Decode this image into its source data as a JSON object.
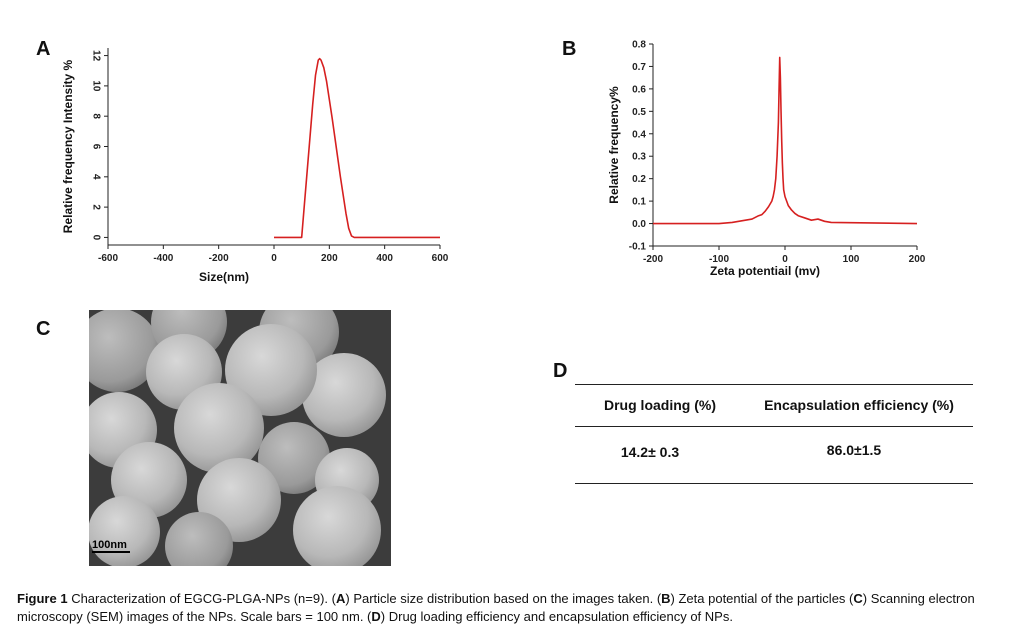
{
  "panels": {
    "a": "A",
    "b": "B",
    "c": "C",
    "d": "D"
  },
  "chart_data": [
    {
      "panel": "A",
      "type": "line",
      "xlabel": "Size(nm)",
      "ylabel": "Relative frequency Intensity %",
      "xlim": [
        -600,
        600
      ],
      "ylim": [
        -0.5,
        12.5
      ],
      "xticks": [
        -600,
        -400,
        -200,
        0,
        200,
        400,
        600
      ],
      "yticks": [
        0,
        2,
        4,
        6,
        8,
        10,
        12
      ],
      "grid": false,
      "color": "#d62020",
      "x": [
        0,
        100,
        110,
        120,
        130,
        140,
        150,
        160,
        165,
        170,
        180,
        190,
        200,
        210,
        220,
        230,
        240,
        250,
        260,
        270,
        280,
        290,
        300,
        600
      ],
      "y": [
        0,
        0,
        2.2,
        4.4,
        6.6,
        8.8,
        10.7,
        11.7,
        11.8,
        11.7,
        11.2,
        10.3,
        9.1,
        7.9,
        6.6,
        5.3,
        4.0,
        2.8,
        1.6,
        0.6,
        0.1,
        0,
        0,
        0
      ]
    },
    {
      "panel": "B",
      "type": "line",
      "xlabel": "Zeta potentiail (mv)",
      "ylabel": "Relative frequency%",
      "xlim": [
        -200,
        200
      ],
      "ylim": [
        -0.1,
        0.8
      ],
      "xticks": [
        -200,
        -100,
        0,
        100,
        200
      ],
      "yticks": [
        "-0.1",
        "0.0",
        "0.1",
        "0.2",
        "0.3",
        "0.4",
        "0.5",
        "0.6",
        "0.7",
        "0.8"
      ],
      "grid": false,
      "color": "#d62020",
      "x": [
        -200,
        -100,
        -80,
        -70,
        -60,
        -50,
        -40,
        -35,
        -30,
        -25,
        -20,
        -18,
        -16,
        -14,
        -12,
        -10,
        -9,
        -8,
        -7,
        -6,
        -5,
        -4,
        -3,
        -2,
        0,
        5,
        10,
        15,
        20,
        30,
        40,
        50,
        60,
        70,
        200
      ],
      "y": [
        0,
        0,
        0.005,
        0.01,
        0.015,
        0.02,
        0.035,
        0.04,
        0.055,
        0.075,
        0.1,
        0.12,
        0.15,
        0.2,
        0.3,
        0.45,
        0.6,
        0.74,
        0.65,
        0.5,
        0.37,
        0.27,
        0.2,
        0.15,
        0.12,
        0.08,
        0.06,
        0.045,
        0.035,
        0.025,
        0.015,
        0.02,
        0.01,
        0.005,
        0
      ]
    }
  ],
  "sem": {
    "scale_bar_label": "100nm"
  },
  "table": {
    "headers": [
      "Drug loading (%)",
      "Encapsulation efficiency (%)"
    ],
    "values": [
      "14.2± 0.3",
      "86.0±1.5"
    ]
  },
  "caption": {
    "figure_label": "Figure 1",
    "intro": " Characterization of EGCG-PLGA-NPs (n=9). (",
    "a": "A",
    "a_text": ") Particle size distribution based on the images taken. (",
    "b": "B",
    "b_text": ") Zeta potential of the particles (",
    "c": "C",
    "c_text": ") Scanning electron microscopy (SEM) images of the NPs. Scale bars = 100 nm. (",
    "d": "D",
    "d_text": ") Drug loading efficiency and encapsulation efficiency of NPs."
  }
}
